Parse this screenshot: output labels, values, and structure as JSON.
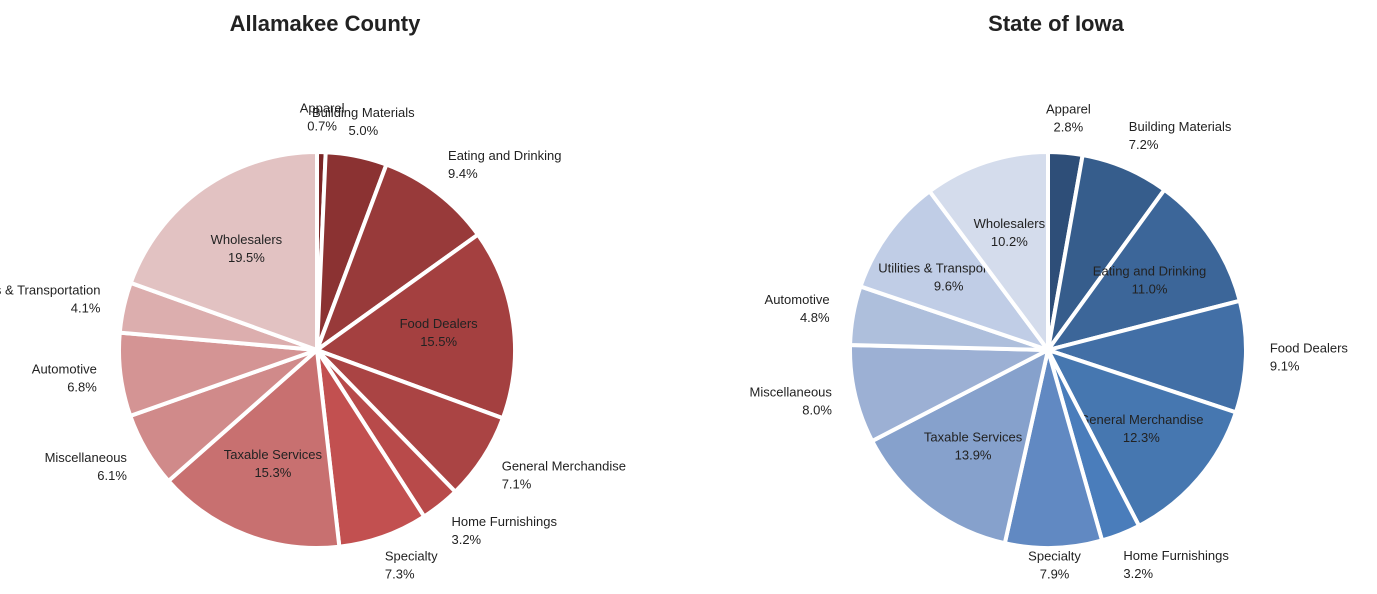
{
  "chart_data": [
    {
      "type": "pie",
      "title": "Allamakee County",
      "categories": [
        "Apparel",
        "Building Materials",
        "Eating and Drinking",
        "Food Dealers",
        "General Merchandise",
        "Home Furnishings",
        "Specialty",
        "Taxable Services",
        "Miscellaneous",
        "Automotive",
        "Utilities & Transportation",
        "Wholesalers"
      ],
      "values": [
        0.7,
        5.0,
        9.4,
        15.5,
        7.1,
        3.2,
        7.3,
        15.3,
        6.1,
        6.8,
        4.1,
        19.5
      ],
      "value_labels": [
        "0.7%",
        "5.0%",
        "9.4%",
        "15.5%",
        "7.1%",
        "3.2%",
        "7.3%",
        "15.3%",
        "6.1%",
        "6.8%",
        "4.1%",
        "19.5%"
      ],
      "colors": [
        "#7a2626",
        "#8b3232",
        "#983a3a",
        "#a44040",
        "#aa4444",
        "#b84a4a",
        "#c25050",
        "#c87070",
        "#d08a8a",
        "#d49494",
        "#dcaeae",
        "#e2c2c2"
      ]
    },
    {
      "type": "pie",
      "title": "State of Iowa",
      "categories": [
        "Apparel",
        "Building Materials",
        "Eating and Drinking",
        "Food Dealers",
        "General Merchandise",
        "Home Furnishings",
        "Specialty",
        "Taxable Services",
        "Miscellaneous",
        "Automotive",
        "Utilities & Transportation",
        "Wholesalers"
      ],
      "values": [
        2.8,
        7.2,
        11.0,
        9.1,
        12.3,
        3.2,
        7.9,
        13.9,
        8.0,
        4.8,
        9.6,
        10.2
      ],
      "value_labels": [
        "2.8%",
        "7.2%",
        "11.0%",
        "9.1%",
        "12.3%",
        "3.2%",
        "7.9%",
        "13.9%",
        "8.0%",
        "4.8%",
        "9.6%",
        "10.2%"
      ],
      "colors": [
        "#2e4e78",
        "#365d8c",
        "#3c6699",
        "#426fa6",
        "#4677b0",
        "#4a7dbb",
        "#6189c2",
        "#86a1cc",
        "#9cb0d4",
        "#aebfdc",
        "#c0cde6",
        "#d4dcec"
      ]
    }
  ]
}
